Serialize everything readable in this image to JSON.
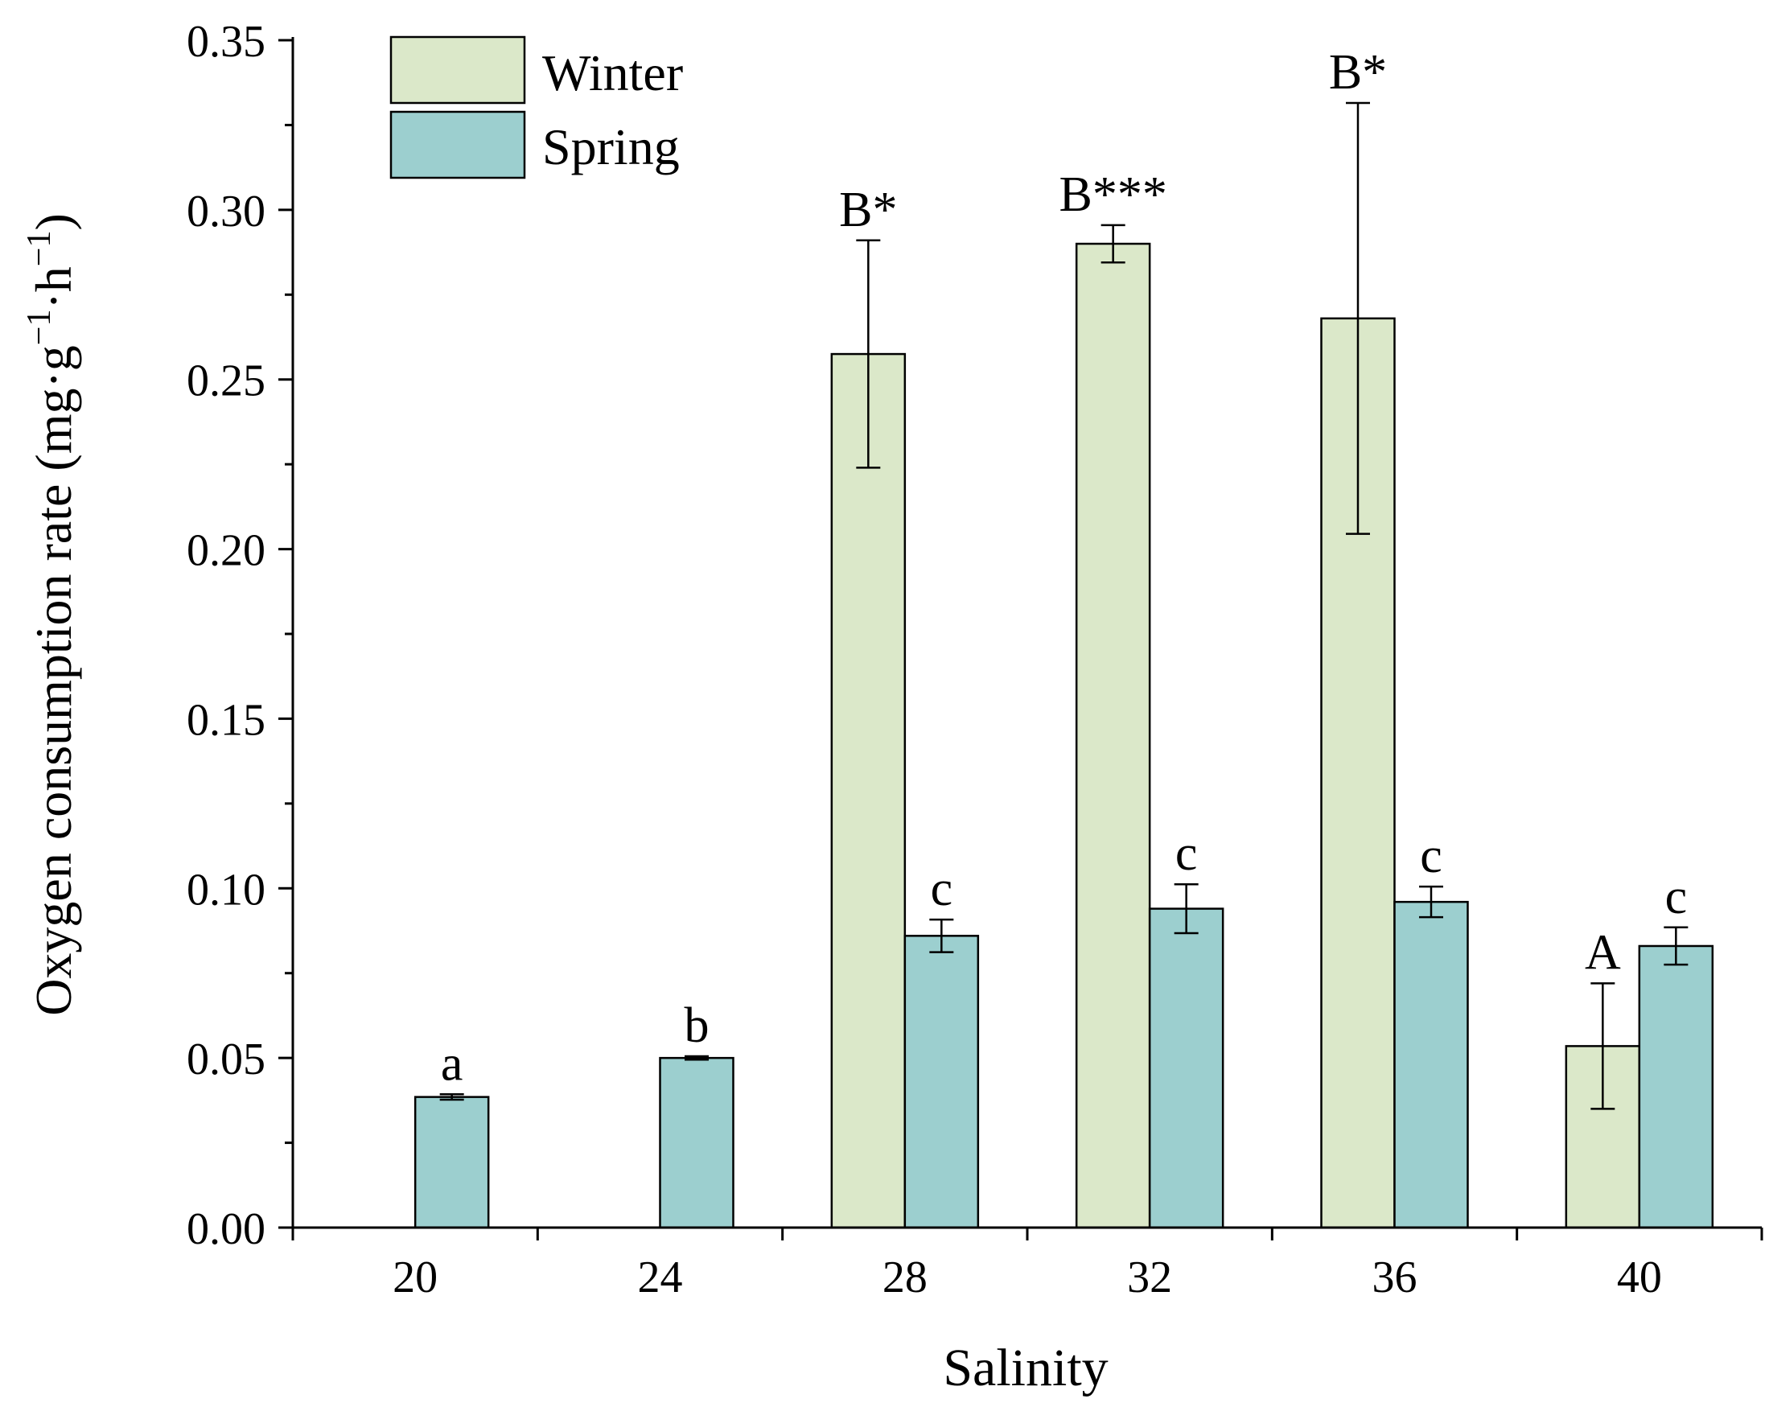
{
  "chart_data": {
    "type": "bar",
    "title": "",
    "xlabel": "Salinity",
    "ylabel": {
      "base": "Oxygen consumption rate (mg·g",
      "sup1": "−1",
      "mid": "·h",
      "sup2": "−1",
      "end": ")"
    },
    "categories": [
      "20",
      "24",
      "28",
      "32",
      "36",
      "40"
    ],
    "ylim": [
      0,
      0.35
    ],
    "yticks": [
      "0.00",
      "0.05",
      "0.10",
      "0.15",
      "0.20",
      "0.25",
      "0.30",
      "0.35"
    ],
    "legend_position": "top-left",
    "series": [
      {
        "name": "Winter",
        "color": "#dbe8c9",
        "values": [
          null,
          null,
          0.2575,
          0.29,
          0.268,
          0.0535
        ],
        "errors": [
          null,
          null,
          0.0335,
          0.0055,
          0.0635,
          0.0185
        ],
        "labels": [
          "",
          "",
          "B*",
          "B***",
          "B*",
          "A"
        ]
      },
      {
        "name": "Spring",
        "color": "#9ccfcf",
        "values": [
          0.0385,
          0.05,
          0.086,
          0.094,
          0.096,
          0.083
        ],
        "errors": [
          0.0008,
          0.0005,
          0.0048,
          0.0072,
          0.0045,
          0.0055
        ],
        "labels": [
          "a",
          "b",
          "c",
          "c",
          "c",
          "c"
        ]
      }
    ]
  }
}
